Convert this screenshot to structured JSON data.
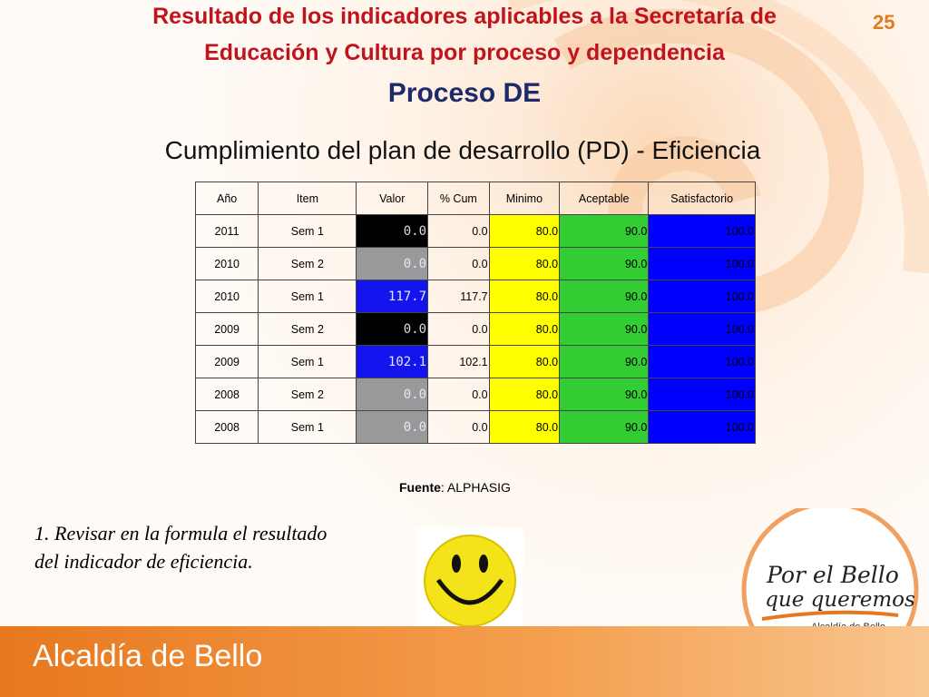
{
  "page_number": "25",
  "header": {
    "title_lines": [
      "Resultado de los indicadores aplicables a la Secretaría de",
      "Educación y Cultura  por proceso y dependencia"
    ],
    "process": "Proceso DE",
    "subtitle": "Cumplimiento del plan de desarrollo (PD) - Eficiencia"
  },
  "table": {
    "columns": [
      "Año",
      "Item",
      "Valor",
      "% Cum",
      "Minimo",
      "Aceptable",
      "Satisfactorio"
    ],
    "rows": [
      [
        "2011",
        "Sem 1",
        "0.0",
        "0.0",
        "80.0",
        "90.0",
        "100.0"
      ],
      [
        "2010",
        "Sem 2",
        "0.0",
        "0.0",
        "80.0",
        "90.0",
        "100.0"
      ],
      [
        "2010",
        "Sem 1",
        "117.7",
        "117.7",
        "80.0",
        "90.0",
        "100.0"
      ],
      [
        "2009",
        "Sem 2",
        "0.0",
        "0.0",
        "80.0",
        "90.0",
        "100.0"
      ],
      [
        "2009",
        "Sem 1",
        "102.1",
        "102.1",
        "80.0",
        "90.0",
        "100.0"
      ],
      [
        "2008",
        "Sem 2",
        "0.0",
        "0.0",
        "80.0",
        "90.0",
        "100.0"
      ],
      [
        "2008",
        "Sem 1",
        "0.0",
        "0.0",
        "80.0",
        "90.0",
        "100.0"
      ]
    ]
  },
  "source": {
    "label": "Fuente",
    "text": ": ALPHASIG"
  },
  "note": {
    "lines": [
      "1. Revisar en la formula el resultado",
      "del indicador de eficiencia."
    ]
  },
  "logo": {
    "line1": "Por el Bello",
    "line2": "que queremos",
    "line3": "Alcaldía de Bello"
  },
  "footer": {
    "text": "Alcaldía de Bello"
  }
}
